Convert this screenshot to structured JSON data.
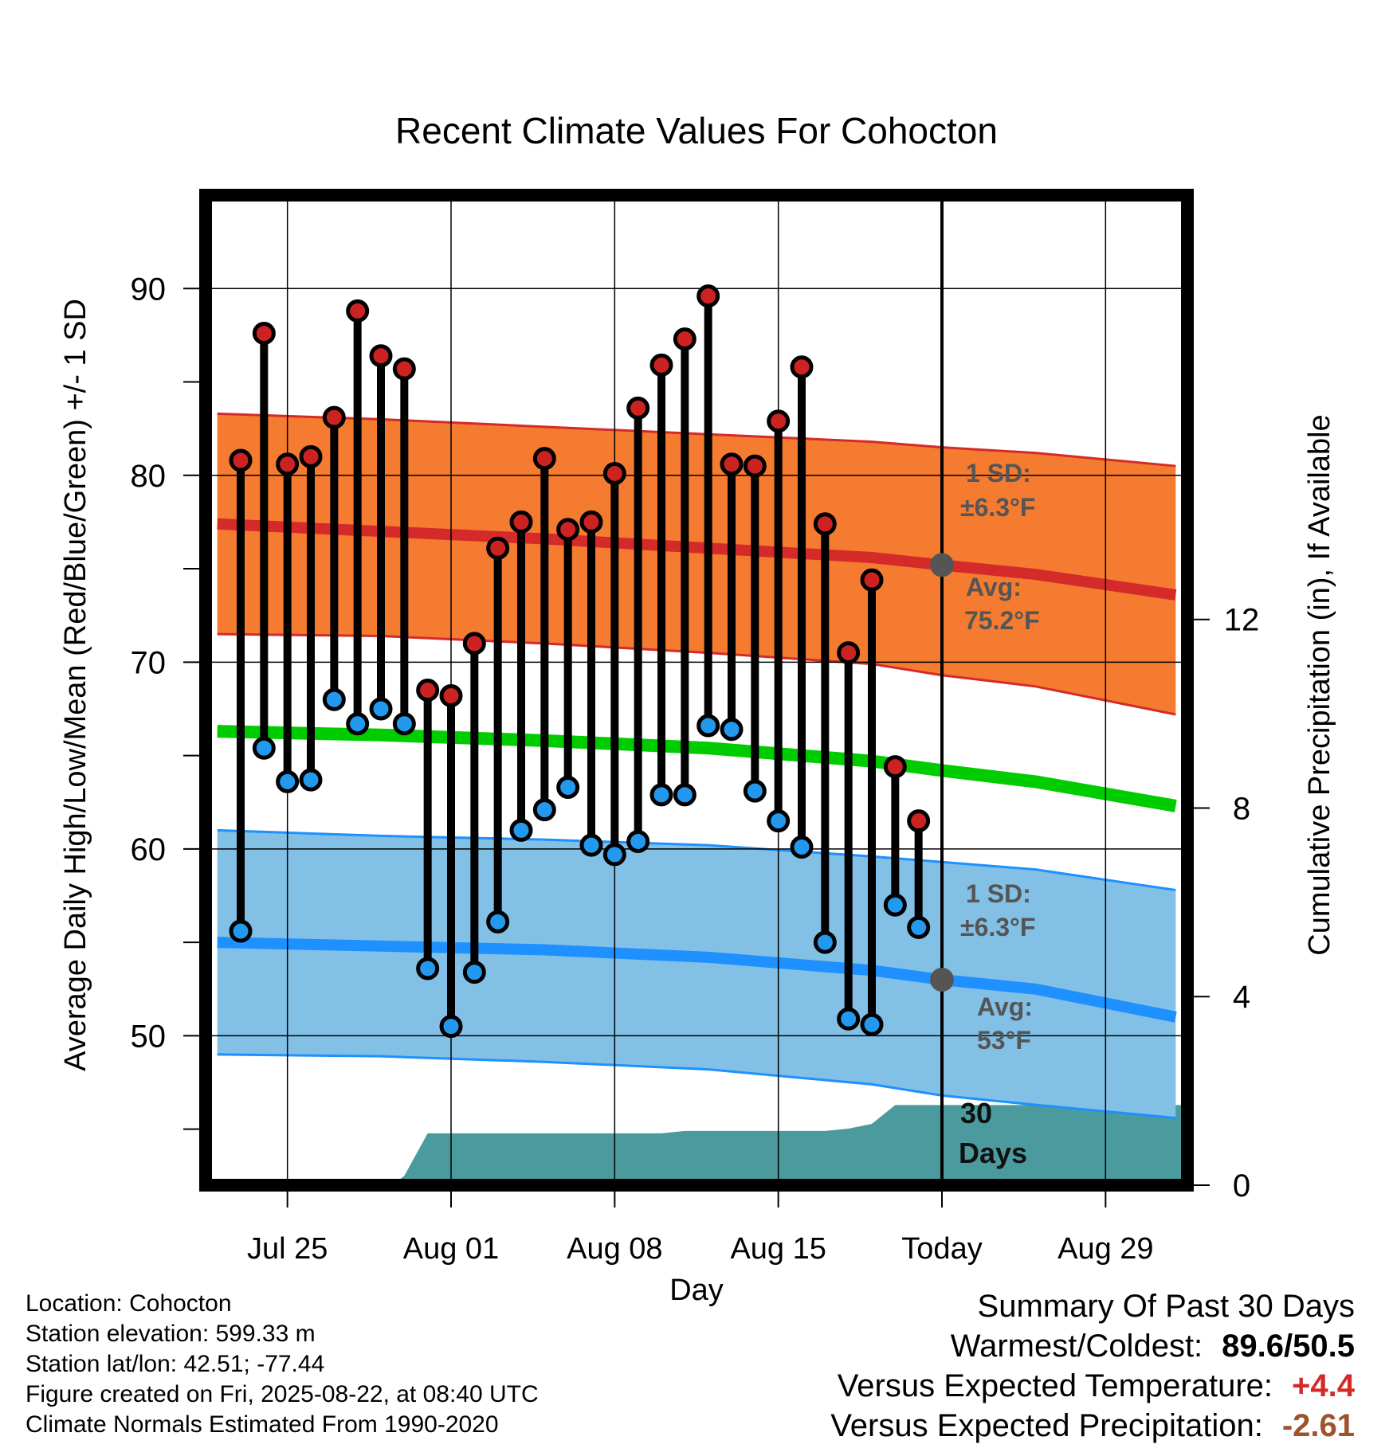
{
  "chart_data": {
    "type": "line",
    "title": "Recent Climate Values For Cohocton",
    "xlabel": "Day",
    "ylabel": "Average Daily High/Low/Mean (Red/Blue/Green) +/- 1 SD",
    "y2label": "Cumulative Precipitation (in), If Available",
    "ylim": [
      42,
      95
    ],
    "y2lim": [
      0,
      21
    ],
    "xlim": [
      -31.5,
      10.5
    ],
    "yticks": [
      "90",
      "80",
      "70",
      "60",
      "50"
    ],
    "y2ticks": [
      "12",
      "8",
      "4",
      "0"
    ],
    "xtick_labels": [
      {
        "day": -28,
        "label": "Jul 25"
      },
      {
        "day": -21,
        "label": "Aug 01"
      },
      {
        "day": -14,
        "label": "Aug 08"
      },
      {
        "day": -7,
        "label": "Aug 15"
      },
      {
        "day": 0,
        "label": "Today"
      },
      {
        "day": 7,
        "label": "Aug 29"
      }
    ],
    "daily_days": [
      -30,
      -29,
      -28,
      -27,
      -26,
      -25,
      -24,
      -23,
      -22,
      -21,
      -20,
      -19,
      -18,
      -17,
      -16,
      -15,
      -14,
      -13,
      -12,
      -11,
      -10,
      -9,
      -8,
      -7,
      -6,
      -5,
      -4,
      -3,
      -2,
      -1
    ],
    "daily_high": [
      80.8,
      87.6,
      80.6,
      81.0,
      83.1,
      88.8,
      86.4,
      85.7,
      68.5,
      68.2,
      71.0,
      76.1,
      77.5,
      80.9,
      77.1,
      77.5,
      80.1,
      83.6,
      85.9,
      87.3,
      89.6,
      80.6,
      80.5,
      82.9,
      85.8,
      77.4,
      70.5,
      74.4,
      64.4,
      61.5
    ],
    "daily_low": [
      55.6,
      65.4,
      63.6,
      63.7,
      68.0,
      66.7,
      67.5,
      66.7,
      53.6,
      50.5,
      53.4,
      56.1,
      61.0,
      62.1,
      63.3,
      60.2,
      59.7,
      60.4,
      62.9,
      62.9,
      66.6,
      66.4,
      63.1,
      61.5,
      60.1,
      55.0,
      50.9,
      50.6,
      57.0,
      55.8
    ],
    "normals": {
      "days": [
        -31,
        -24,
        -17,
        -10,
        -3,
        0,
        4,
        10
      ],
      "high_avg": [
        77.4,
        77.0,
        76.6,
        76.1,
        75.6,
        75.2,
        74.7,
        73.6
      ],
      "high_upper": [
        83.3,
        83.0,
        82.6,
        82.2,
        81.8,
        81.5,
        81.2,
        80.5
      ],
      "high_lower": [
        71.5,
        71.4,
        71.0,
        70.5,
        69.9,
        69.3,
        68.7,
        67.2
      ],
      "mean": [
        66.3,
        66.1,
        65.8,
        65.4,
        64.7,
        64.2,
        63.6,
        62.3
      ],
      "low_avg": [
        55.0,
        54.8,
        54.6,
        54.2,
        53.5,
        53.0,
        52.5,
        51.0
      ],
      "low_upper": [
        61.0,
        60.7,
        60.5,
        60.2,
        59.6,
        59.3,
        58.9,
        57.8
      ],
      "low_lower": [
        49.0,
        48.9,
        48.6,
        48.2,
        47.4,
        46.8,
        46.3,
        45.6
      ]
    },
    "precip": {
      "days": [
        -31,
        -23.5,
        -23,
        -22,
        -20,
        -12,
        -11,
        -8,
        -5,
        -4,
        -3,
        -2,
        10.5
      ],
      "values": [
        0,
        0,
        0.2,
        1.1,
        1.1,
        1.1,
        1.15,
        1.15,
        1.15,
        1.2,
        1.3,
        1.7,
        1.7
      ]
    },
    "today_high_avg": 75.2,
    "today_low_avg": 53.0,
    "colors": {
      "high_band": "#f47b30",
      "high_line": "#d42a2a",
      "low_band": "#82c0e6",
      "low_line": "#1e90ff",
      "mean_line": "#00cc00",
      "precip_fill": "#4a9a9e",
      "high_point": "#cc2222",
      "low_point": "#2299ee",
      "today_marker": "#555555",
      "temp_diff": "#d42a2a",
      "precip_diff": "#a0522d"
    }
  },
  "annotations": {
    "high_sd_line1": "1 SD:",
    "high_sd_line2": "±6.3°F",
    "high_avg_line1": "Avg:",
    "high_avg_line2": "75.2°F",
    "low_sd_line1": "1 SD:",
    "low_sd_line2": "±6.3°F",
    "low_avg_line1": "Avg:",
    "low_avg_line2": "53°F",
    "days_line1": "30",
    "days_line2": "Days"
  },
  "info": {
    "location": "Location: Cohocton",
    "elevation": "Station elevation: 599.33 m",
    "latlon": "Station lat/lon: 42.51; -77.44",
    "created": "Figure created on Fri, 2025-08-22, at 08:40 UTC",
    "normals": "Climate Normals Estimated From 1990-2020"
  },
  "summary": {
    "title": "Summary Of Past 30 Days",
    "warm_cold_label": "Warmest/Coldest:",
    "warm_cold_value": "89.6/50.5",
    "temp_label": "Versus Expected Temperature:",
    "temp_value": "+4.4",
    "precip_label": "Versus Expected Precipitation:",
    "precip_value": "-2.61"
  }
}
